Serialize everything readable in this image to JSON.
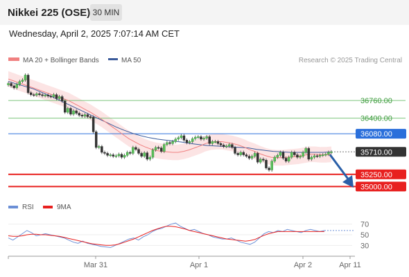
{
  "header": {
    "title": "Nikkei 225 (OSE)",
    "timeframe": "30 MIN",
    "datetime": "Wednesday, April 2, 2025 7:07:14 AM CET"
  },
  "legend": {
    "ma20": "MA 20 + Bollinger Bands",
    "ma50": "MA 50",
    "credit": "Research © 2025 Trading Central",
    "rsi": "RSI",
    "rsi_ma": "9MA"
  },
  "colors": {
    "ma20": "#f08080",
    "ma50": "#3a5a9a",
    "band": "#fbd8d8",
    "resistance": "#7cc47c",
    "pivot": "#2a6fdb",
    "support": "#e8201f",
    "last": "#333333",
    "arrow": "#2a5fa8",
    "rsi": "#6b8fd6",
    "rsi_ma": "#e8201f"
  },
  "chart_data": [
    {
      "type": "candlestick",
      "title": "Nikkei 225 (OSE)",
      "ylim": [
        34850,
        37400
      ],
      "levels": [
        {
          "value": 36760,
          "label": "36760.00",
          "kind": "resistance"
        },
        {
          "value": 36400,
          "label": "36400.00",
          "kind": "resistance"
        },
        {
          "value": 36080,
          "label": "36080.00",
          "kind": "pivot"
        },
        {
          "value": 35710,
          "label": "35710.00",
          "kind": "last"
        },
        {
          "value": 35250,
          "label": "35250.00",
          "kind": "support"
        },
        {
          "value": 35000,
          "label": "35000.00",
          "kind": "support"
        }
      ],
      "x_ticks": [
        "Mar 31",
        "Apr 1",
        "Apr 2",
        "Apr 11"
      ],
      "series_close": [
        37110,
        37060,
        37020,
        37090,
        37150,
        37180,
        37280,
        36920,
        36880,
        36870,
        36900,
        36880,
        36860,
        36870,
        36850,
        36840,
        36880,
        36800,
        36840,
        36750,
        36520,
        36600,
        36480,
        36550,
        36500,
        36460,
        36440,
        36470,
        36430,
        36420,
        36120,
        35800,
        35820,
        35700,
        35680,
        35640,
        35650,
        35620,
        35630,
        35660,
        35600,
        35640,
        35700,
        35680,
        35800,
        35760,
        35680,
        35620,
        35690,
        35560,
        35600,
        35750,
        35800,
        35790,
        35720,
        35860,
        35900,
        35880,
        35920,
        35970,
        36000,
        36040,
        35950,
        35900,
        35920,
        35980,
        36010,
        36020,
        35970,
        35990,
        36020,
        35880,
        35920,
        35920,
        35880,
        35850,
        35820,
        35830,
        35860,
        35800,
        35680,
        35650,
        35700,
        35650,
        35620,
        35580,
        35620,
        35680,
        35500,
        35560,
        35540,
        35380,
        35340,
        35520,
        35600,
        35640,
        35700,
        35580,
        35520,
        35600,
        35700,
        35650,
        35600,
        35620,
        35700,
        35780,
        35560,
        35600,
        35630,
        35620,
        35640,
        35650,
        35660,
        35700,
        35710
      ],
      "series_ma20": [
        37200,
        37160,
        37120,
        37080,
        37040,
        37000,
        36960,
        36920,
        36880,
        36840,
        36800,
        36760,
        36700,
        36640,
        36580,
        36520,
        36450,
        36380,
        36300,
        36220,
        36140,
        36060,
        35980,
        35920,
        35860,
        35810,
        35770,
        35740,
        35720,
        35710,
        35700,
        35700,
        35720,
        35750,
        35790,
        35830,
        35880,
        35910,
        35920,
        35920,
        35900,
        35880,
        35850,
        35810,
        35760,
        35720,
        35670,
        35630,
        35600,
        35590,
        35590,
        35600,
        35610,
        35620,
        35640,
        35660,
        35660,
        35650,
        35650,
        35660
      ],
      "series_ma50": [
        37150,
        37100,
        37050,
        37000,
        36930,
        36860,
        36780,
        36700,
        36620,
        36540,
        36460,
        36380,
        36300,
        36220,
        36150,
        36090,
        36040,
        36000,
        35970,
        35950,
        35930,
        35910,
        35880,
        35860,
        35840,
        35830,
        35820,
        35810,
        35800,
        35790,
        35760,
        35740,
        35720,
        35710,
        35700,
        35700,
        35700,
        35700,
        35700,
        35710
      ],
      "forecast": {
        "from": 35710,
        "to": 35120,
        "direction": "down"
      }
    },
    {
      "type": "line",
      "series": [
        {
          "name": "RSI",
          "values": [
            44,
            40,
            46,
            52,
            58,
            54,
            48,
            50,
            52,
            50,
            48,
            46,
            44,
            40,
            36,
            34,
            38,
            34,
            32,
            30,
            28,
            27,
            26,
            30,
            34,
            38,
            42,
            44,
            40,
            46,
            50,
            56,
            60,
            62,
            66,
            70,
            72,
            66,
            62,
            58,
            60,
            56,
            52,
            50,
            46,
            44,
            42,
            42,
            44,
            40,
            36,
            34,
            32,
            36,
            44,
            52,
            56,
            54,
            58,
            56,
            60,
            58,
            56,
            54,
            58,
            60,
            58,
            56,
            58
          ]
        },
        {
          "name": "9MA",
          "values": [
            48,
            47,
            47,
            48,
            50,
            51,
            51,
            50,
            50,
            49,
            48,
            47,
            45,
            43,
            41,
            39,
            37,
            35,
            33,
            32,
            31,
            30,
            30,
            31,
            33,
            36,
            39,
            42,
            46,
            50,
            54,
            58,
            61,
            64,
            66,
            66,
            65,
            63,
            61,
            58,
            56,
            54,
            52,
            50,
            48,
            46,
            44,
            42,
            41,
            40,
            39,
            38,
            39,
            41,
            45,
            49,
            52,
            54,
            56,
            56,
            56,
            56,
            56,
            56,
            56,
            56,
            56,
            56,
            56
          ]
        }
      ],
      "y_ticks": [
        70,
        50,
        30
      ],
      "ylim": [
        20,
        80
      ]
    }
  ]
}
